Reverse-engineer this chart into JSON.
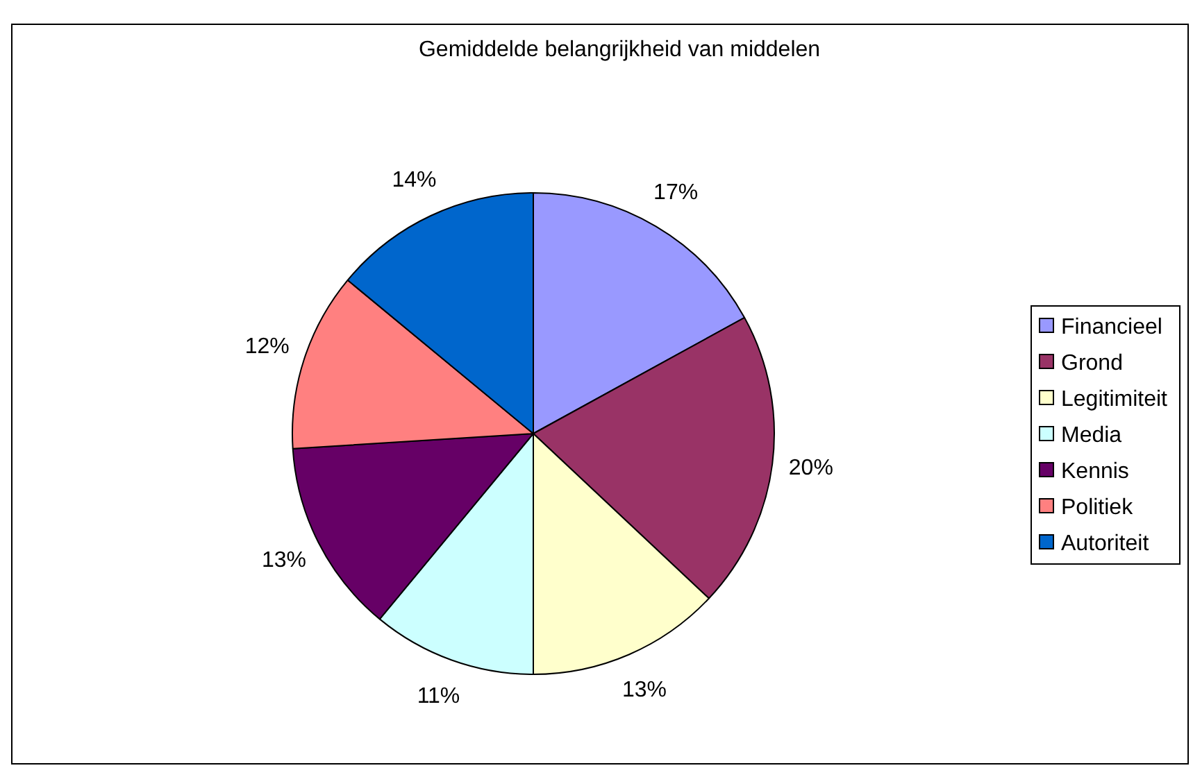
{
  "chart_data": {
    "type": "pie",
    "title": "Gemiddelde belangrijkheid van middelen",
    "categories": [
      "Financieel",
      "Grond",
      "Legitimiteit",
      "Media",
      "Kennis",
      "Politiek",
      "Autoriteit"
    ],
    "values": [
      17,
      20,
      13,
      11,
      13,
      12,
      14
    ],
    "colors": [
      "#9999ff",
      "#993366",
      "#ffffcc",
      "#ccffff",
      "#660066",
      "#ff8080",
      "#0066cc"
    ],
    "value_labels": [
      "17%",
      "20%",
      "13%",
      "11%",
      "13%",
      "12%",
      "14%"
    ],
    "legend": "right"
  }
}
